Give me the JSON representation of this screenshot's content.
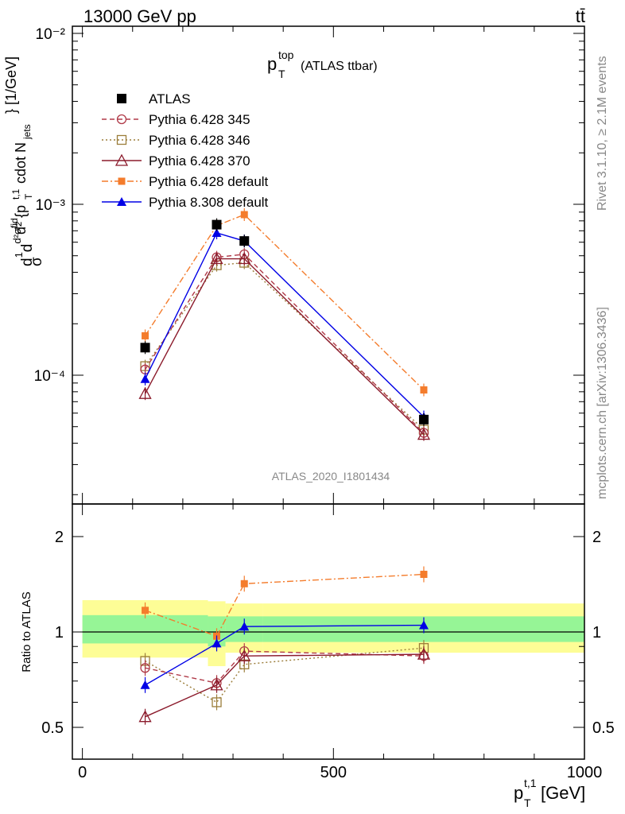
{
  "header": {
    "left": "13000 GeV pp",
    "right": "tt̄"
  },
  "main_title": {
    "base": "p",
    "sup": "top",
    "sub": "T",
    "suffix": "(ATLAS ttbar)"
  },
  "side_labels": {
    "rivet": "Rivet 3.1.10, ≥ 2.1M events",
    "mcplots": "mcplots.cern.ch [arXiv:1306.3436]"
  },
  "analysis_tag": "ATLAS_2020_I1801434",
  "legend": [
    {
      "label": "ATLAS",
      "color": "#000000",
      "marker": "square-filled",
      "line": "none"
    },
    {
      "label": "Pythia 6.428 345",
      "color": "#b03a48",
      "marker": "circle-open",
      "line": "dashed"
    },
    {
      "label": "Pythia 6.428 346",
      "color": "#9b7d3a",
      "marker": "square-open",
      "line": "dotted"
    },
    {
      "label": "Pythia 6.428 370",
      "color": "#8b1a2b",
      "marker": "triangle-open",
      "line": "solid"
    },
    {
      "label": "Pythia 6.428 default",
      "color": "#f47c2c",
      "marker": "square-filled-small",
      "line": "dashdot"
    },
    {
      "label": "Pythia 8.308 default",
      "color": "#0000e6",
      "marker": "triangle-filled",
      "line": "solid"
    }
  ],
  "chart_data": [
    {
      "type": "line",
      "panel": "main",
      "yscale": "log",
      "ylabel": "d²σ/d²{p_T^{t,1} cdot N_jets} [1/GeV]",
      "ylim": [
        2e-05,
        0.01
      ],
      "xlim": [
        -20,
        1000
      ],
      "y_tick_labels": [
        "10⁻⁴",
        "10⁻³",
        "10⁻²"
      ],
      "x": [
        125,
        267.5,
        322.5,
        680
      ],
      "series": [
        {
          "name": "ATLAS",
          "values": [
            0.000145,
            0.00076,
            0.00061,
            5.5e-05
          ]
        },
        {
          "name": "Pythia 6.428 345",
          "values": [
            0.000108,
            0.00049,
            0.00051,
            4.6e-05
          ]
        },
        {
          "name": "Pythia 6.428 346",
          "values": [
            0.000113,
            0.00044,
            0.000455,
            4.8e-05
          ]
        },
        {
          "name": "Pythia 6.428 370",
          "values": [
            7.8e-05,
            0.00048,
            0.00048,
            4.5e-05
          ]
        },
        {
          "name": "Pythia 6.428 default",
          "values": [
            0.00017,
            0.00075,
            0.00087,
            8.2e-05
          ]
        },
        {
          "name": "Pythia 8.308 default",
          "values": [
            9.5e-05,
            0.00068,
            0.00061,
            5.7e-05
          ]
        }
      ]
    },
    {
      "type": "line",
      "panel": "ratio",
      "ylabel": "Ratio to ATLAS",
      "xlabel": "p_T^{t,1} [GeV]",
      "ylim": [
        0.43,
        2.3
      ],
      "xlim": [
        -20,
        1000
      ],
      "y_ticks": [
        0.5,
        1,
        2
      ],
      "x_ticks": [
        0,
        500,
        1000
      ],
      "x": [
        125,
        267.5,
        322.5,
        680
      ],
      "series": [
        {
          "name": "Pythia 6.428 345",
          "values": [
            0.77,
            0.69,
            0.87,
            0.84
          ]
        },
        {
          "name": "Pythia 6.428 346",
          "values": [
            0.81,
            0.6,
            0.79,
            0.89
          ]
        },
        {
          "name": "Pythia 6.428 370",
          "values": [
            0.54,
            0.68,
            0.84,
            0.85
          ]
        },
        {
          "name": "Pythia 6.428 default",
          "values": [
            1.17,
            0.97,
            1.42,
            1.52
          ]
        },
        {
          "name": "Pythia 8.308 default",
          "values": [
            0.68,
            0.92,
            1.04,
            1.05
          ]
        }
      ]
    }
  ]
}
